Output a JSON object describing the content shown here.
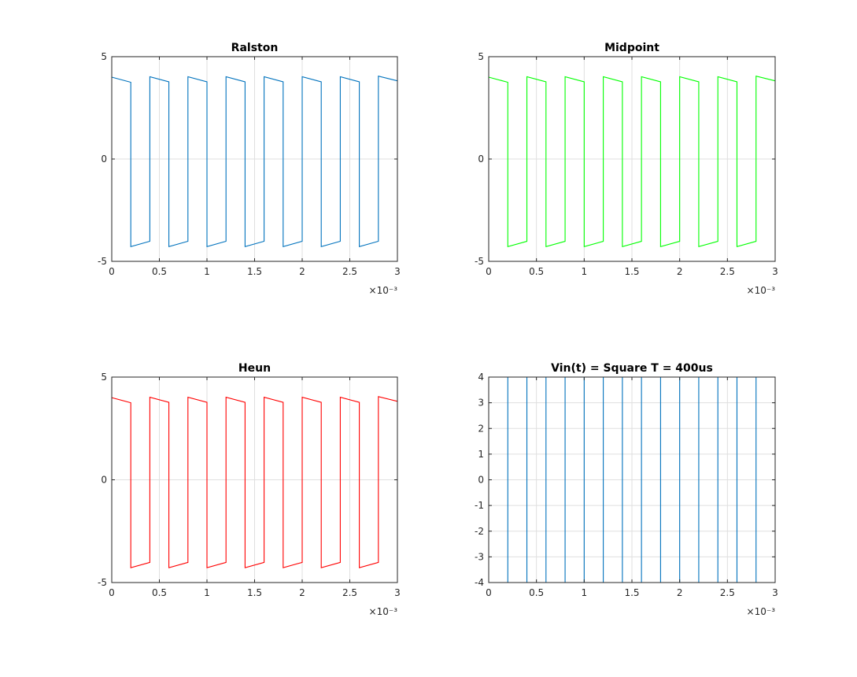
{
  "chart_data": [
    {
      "type": "line",
      "title": "Ralston",
      "color": "#0072BD",
      "xlim": [
        0,
        0.003
      ],
      "ylim": [
        -5,
        5
      ],
      "xticks": [
        0,
        0.5,
        1,
        1.5,
        2,
        2.5,
        3
      ],
      "yticks": [
        -5,
        0,
        5
      ],
      "x_exponent": "×10⁻³",
      "grid": true,
      "x": [
        0,
        0.0002,
        0.0002,
        0.0004,
        0.0004,
        0.0006,
        0.0006,
        0.0008,
        0.0008,
        0.001,
        0.001,
        0.0012,
        0.0012,
        0.0014,
        0.0014,
        0.0016,
        0.0016,
        0.0018,
        0.0018,
        0.002,
        0.002,
        0.0022,
        0.0022,
        0.0024,
        0.0024,
        0.0026,
        0.0026,
        0.0028,
        0.0028,
        0.003
      ],
      "y": [
        4.0,
        3.75,
        -4.28,
        -4.02,
        4.02,
        3.77,
        -4.28,
        -4.02,
        4.02,
        3.77,
        -4.28,
        -4.02,
        4.02,
        3.77,
        -4.28,
        -4.02,
        4.02,
        3.77,
        -4.28,
        -4.02,
        4.02,
        3.77,
        -4.28,
        -4.02,
        4.02,
        3.77,
        -4.28,
        -4.02,
        4.05,
        3.82
      ]
    },
    {
      "type": "line",
      "title": "Midpoint",
      "color": "#00FF00",
      "xlim": [
        0,
        0.003
      ],
      "ylim": [
        -5,
        5
      ],
      "xticks": [
        0,
        0.5,
        1,
        1.5,
        2,
        2.5,
        3
      ],
      "yticks": [
        -5,
        0,
        5
      ],
      "x_exponent": "×10⁻³",
      "grid": true,
      "x": [
        0,
        0.0002,
        0.0002,
        0.0004,
        0.0004,
        0.0006,
        0.0006,
        0.0008,
        0.0008,
        0.001,
        0.001,
        0.0012,
        0.0012,
        0.0014,
        0.0014,
        0.0016,
        0.0016,
        0.0018,
        0.0018,
        0.002,
        0.002,
        0.0022,
        0.0022,
        0.0024,
        0.0024,
        0.0026,
        0.0026,
        0.0028,
        0.0028,
        0.003
      ],
      "y": [
        4.0,
        3.75,
        -4.28,
        -4.02,
        4.02,
        3.77,
        -4.28,
        -4.02,
        4.02,
        3.77,
        -4.28,
        -4.02,
        4.02,
        3.77,
        -4.28,
        -4.02,
        4.02,
        3.77,
        -4.28,
        -4.02,
        4.02,
        3.77,
        -4.28,
        -4.02,
        4.02,
        3.77,
        -4.28,
        -4.02,
        4.05,
        3.82
      ]
    },
    {
      "type": "line",
      "title": "Heun",
      "color": "#FF0000",
      "xlim": [
        0,
        0.003
      ],
      "ylim": [
        -5,
        5
      ],
      "xticks": [
        0,
        0.5,
        1,
        1.5,
        2,
        2.5,
        3
      ],
      "yticks": [
        -5,
        0,
        5
      ],
      "x_exponent": "×10⁻³",
      "grid": true,
      "x": [
        0,
        0.0002,
        0.0002,
        0.0004,
        0.0004,
        0.0006,
        0.0006,
        0.0008,
        0.0008,
        0.001,
        0.001,
        0.0012,
        0.0012,
        0.0014,
        0.0014,
        0.0016,
        0.0016,
        0.0018,
        0.0018,
        0.002,
        0.002,
        0.0022,
        0.0022,
        0.0024,
        0.0024,
        0.0026,
        0.0026,
        0.0028,
        0.0028,
        0.003
      ],
      "y": [
        4.0,
        3.75,
        -4.28,
        -4.02,
        4.02,
        3.77,
        -4.28,
        -4.02,
        4.02,
        3.77,
        -4.28,
        -4.02,
        4.02,
        3.77,
        -4.28,
        -4.02,
        4.02,
        3.77,
        -4.28,
        -4.02,
        4.02,
        3.77,
        -4.28,
        -4.02,
        4.02,
        3.77,
        -4.28,
        -4.02,
        4.05,
        3.82
      ]
    },
    {
      "type": "line",
      "title": "Vin(t) = Square T = 400us",
      "color": "#0072BD",
      "xlim": [
        0,
        0.003
      ],
      "ylim": [
        -4,
        4
      ],
      "xticks": [
        0,
        0.5,
        1,
        1.5,
        2,
        2.5,
        3
      ],
      "yticks": [
        -4,
        -3,
        -2,
        -1,
        0,
        1,
        2,
        3,
        4
      ],
      "x_exponent": "×10⁻³",
      "grid": true,
      "x": [
        0,
        0.0002,
        0.0002,
        0.0004,
        0.0004,
        0.0006,
        0.0006,
        0.0008,
        0.0008,
        0.001,
        0.001,
        0.0012,
        0.0012,
        0.0014,
        0.0014,
        0.0016,
        0.0016,
        0.0018,
        0.0018,
        0.002,
        0.002,
        0.0022,
        0.0022,
        0.0024,
        0.0024,
        0.0026,
        0.0026,
        0.0028,
        0.0028,
        0.003
      ],
      "y": [
        4,
        4,
        -4,
        -4,
        4,
        4,
        -4,
        -4,
        4,
        4,
        -4,
        -4,
        4,
        4,
        -4,
        -4,
        4,
        4,
        -4,
        -4,
        4,
        4,
        -4,
        -4,
        4,
        4,
        -4,
        -4,
        4,
        4
      ]
    }
  ]
}
